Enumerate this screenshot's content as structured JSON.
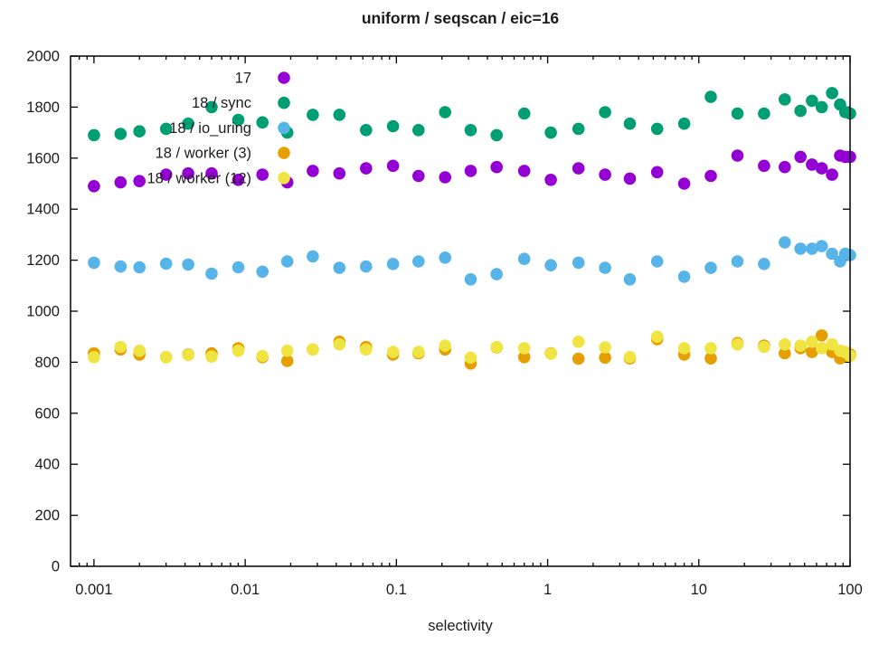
{
  "chart_data": {
    "type": "scatter",
    "title": "uniform / seqscan / eic=16",
    "xlabel": "selectivity",
    "ylabel": "",
    "x_scale": "log",
    "y_scale": "linear",
    "xlim": [
      0.0007,
      100
    ],
    "ylim": [
      0,
      2000
    ],
    "grid": false,
    "legend_position": "inside-top-left",
    "marker": "filled-circle",
    "x_major_ticks": [
      0.001,
      0.01,
      0.1,
      1,
      10,
      100
    ],
    "x_tick_labels": [
      "0.001",
      "0.01",
      "0.1",
      "1",
      "10",
      "100"
    ],
    "y_major_ticks": [
      0,
      200,
      400,
      600,
      800,
      1000,
      1200,
      1400,
      1600,
      1800,
      2000
    ],
    "y_tick_labels": [
      "0",
      "200",
      "400",
      "600",
      "800",
      "1000",
      "1200",
      "1400",
      "1600",
      "1800",
      "2000"
    ],
    "x": [
      0.001,
      0.0015,
      0.002,
      0.003,
      0.0042,
      0.006,
      0.009,
      0.013,
      0.019,
      0.028,
      0.042,
      0.063,
      0.095,
      0.14,
      0.21,
      0.31,
      0.46,
      0.7,
      1.05,
      1.6,
      2.4,
      3.5,
      5.3,
      8,
      12,
      18,
      27,
      37,
      47,
      56,
      65,
      76,
      86,
      93,
      100
    ],
    "series": [
      {
        "name": "17",
        "color": "#9400D3",
        "values": [
          1490,
          1505,
          1510,
          1535,
          1540,
          1540,
          1515,
          1535,
          1505,
          1550,
          1540,
          1560,
          1570,
          1530,
          1525,
          1550,
          1565,
          1550,
          1515,
          1560,
          1535,
          1520,
          1545,
          1500,
          1530,
          1610,
          1570,
          1565,
          1605,
          1575,
          1560,
          1535,
          1610,
          1605,
          1605
        ]
      },
      {
        "name": "18 / sync",
        "color": "#009E73",
        "values": [
          1690,
          1695,
          1705,
          1715,
          1735,
          1800,
          1750,
          1740,
          1700,
          1770,
          1770,
          1710,
          1725,
          1710,
          1780,
          1710,
          1690,
          1775,
          1700,
          1715,
          1780,
          1735,
          1715,
          1735,
          1840,
          1775,
          1775,
          1830,
          1785,
          1825,
          1800,
          1855,
          1810,
          1780,
          1775
        ]
      },
      {
        "name": "18 / io_uring",
        "color": "#56B4E9",
        "values": [
          1190,
          1175,
          1172,
          1186,
          1183,
          1147,
          1172,
          1155,
          1195,
          1215,
          1170,
          1175,
          1185,
          1195,
          1210,
          1125,
          1145,
          1205,
          1180,
          1190,
          1170,
          1125,
          1195,
          1135,
          1170,
          1195,
          1185,
          1270,
          1245,
          1245,
          1255,
          1225,
          1195,
          1225,
          1220
        ]
      },
      {
        "name": "18 / worker (3)",
        "color": "#E69F00",
        "values": [
          835,
          850,
          830,
          820,
          830,
          835,
          855,
          820,
          805,
          850,
          880,
          860,
          830,
          835,
          850,
          795,
          858,
          820,
          835,
          814,
          818,
          815,
          890,
          830,
          815,
          875,
          865,
          835,
          855,
          840,
          905,
          840,
          815,
          825,
          830
        ]
      },
      {
        "name": "18 / worker (12)",
        "color": "#F0E442",
        "values": [
          820,
          860,
          845,
          820,
          828,
          822,
          845,
          824,
          845,
          850,
          870,
          850,
          840,
          840,
          865,
          818,
          860,
          855,
          833,
          880,
          858,
          820,
          900,
          855,
          855,
          870,
          860,
          870,
          865,
          880,
          855,
          870,
          845,
          840,
          825
        ]
      }
    ]
  }
}
